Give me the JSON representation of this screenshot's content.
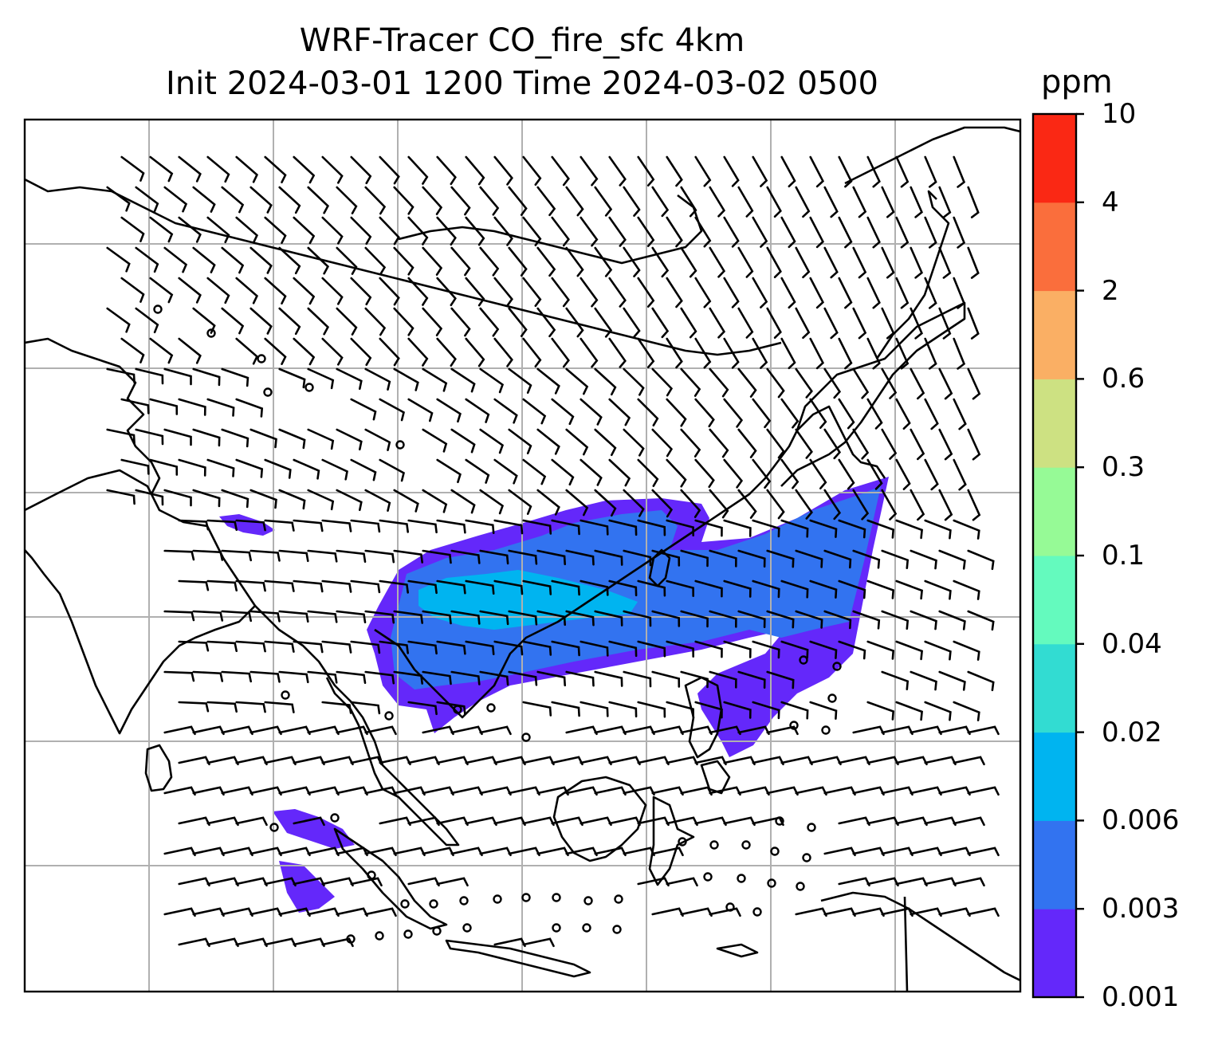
{
  "title": {
    "line1": "WRF-Tracer CO_fire_sfc 4km",
    "line2": "Init 2024-03-01 1200 Time 2024-03-02 0500"
  },
  "colorbar": {
    "unit": "ppm",
    "levels": [
      "0.001",
      "0.003",
      "0.006",
      "0.02",
      "0.04",
      "0.1",
      "0.3",
      "0.6",
      "2",
      "4",
      "10"
    ],
    "colors": [
      "#6428fa",
      "#3273f0",
      "#00b4f0",
      "#32dcd2",
      "#64fabe",
      "#96fa96",
      "#cde182",
      "#faaf64",
      "#fa6e3c",
      "#fa2814"
    ]
  },
  "map": {
    "gridlines": true,
    "barbs": true,
    "coastlines": true
  }
}
